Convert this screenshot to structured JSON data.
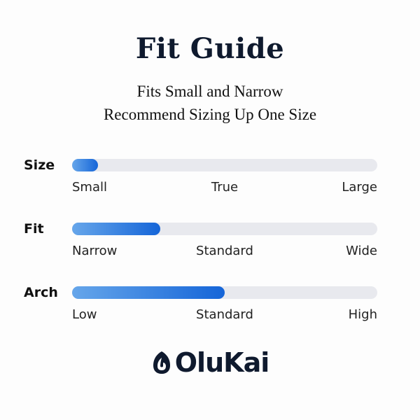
{
  "title": "Fit Guide",
  "subtitle_lines": [
    "Fits Small and Narrow",
    "Recommend Sizing Up One Size"
  ],
  "accent_color": "#1565d8",
  "rows": [
    {
      "label": "Size",
      "level_percent": 8.5,
      "scale": [
        "Small",
        "True",
        "Large"
      ]
    },
    {
      "label": "Fit",
      "level_percent": 29,
      "scale": [
        "Narrow",
        "Standard",
        "Wide"
      ]
    },
    {
      "label": "Arch",
      "level_percent": 50,
      "scale": [
        "Low",
        "Standard",
        "High"
      ]
    }
  ],
  "logo": {
    "text": "OluKai",
    "icon": "fishhook-logo-icon"
  }
}
